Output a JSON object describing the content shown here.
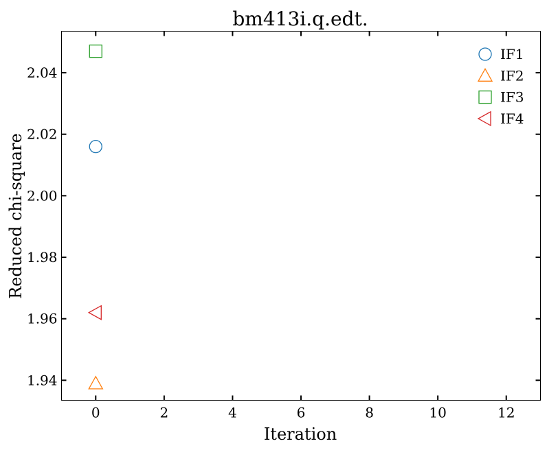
{
  "chart_data": {
    "type": "scatter",
    "title": "bm413i.q.edt.",
    "xlabel": "Iteration",
    "ylabel": "Reduced chi-square",
    "xlim": [
      -1,
      13
    ],
    "ylim": [
      1.9335,
      2.0535
    ],
    "xticks": [
      0,
      2,
      4,
      6,
      8,
      10,
      12
    ],
    "yticks": [
      1.94,
      1.96,
      1.98,
      2.0,
      2.02,
      2.04
    ],
    "xtick_labels": [
      "0",
      "2",
      "4",
      "6",
      "8",
      "10",
      "12"
    ],
    "ytick_labels": [
      "1.94",
      "1.96",
      "1.98",
      "2.00",
      "2.02",
      "2.04"
    ],
    "grid": false,
    "legend_position": "top-right",
    "series": [
      {
        "name": "IF1",
        "marker": "circle",
        "color": "#1f77b4",
        "x": [
          0
        ],
        "y": [
          2.016
        ]
      },
      {
        "name": "IF2",
        "marker": "triangle-up",
        "color": "#ff7f0e",
        "x": [
          0
        ],
        "y": [
          1.939
        ]
      },
      {
        "name": "IF3",
        "marker": "square",
        "color": "#2ca02c",
        "x": [
          0
        ],
        "y": [
          2.047
        ]
      },
      {
        "name": "IF4",
        "marker": "triangle-left",
        "color": "#d62728",
        "x": [
          0
        ],
        "y": [
          1.962
        ]
      }
    ]
  }
}
